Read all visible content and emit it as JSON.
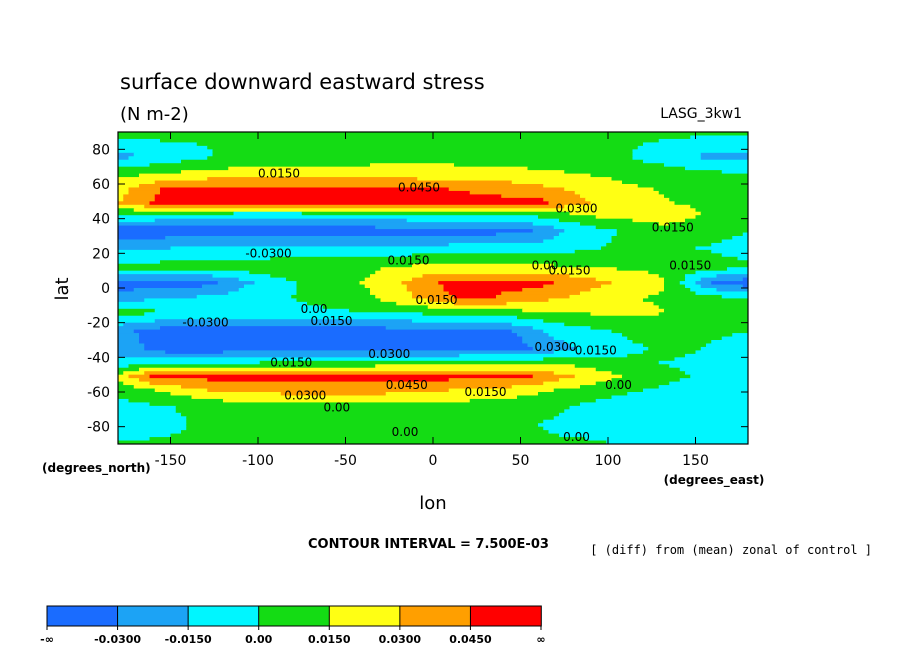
{
  "chart_data": {
    "type": "heatmap",
    "title": "surface downward eastward stress",
    "units": "(N m-2)",
    "model_label": "LASG_3kw1",
    "xlabel": "lon",
    "ylabel": "lat",
    "x_unit": "(degrees_east)",
    "y_unit": "(degrees_north)",
    "xlim": [
      -180,
      180
    ],
    "ylim": [
      -90,
      90
    ],
    "x_ticks": [
      -150,
      -100,
      -50,
      0,
      50,
      100,
      150
    ],
    "x_tick_labels": [
      "-150",
      "-100",
      "-50",
      "0",
      "50",
      "100",
      "150"
    ],
    "y_ticks": [
      -80,
      -60,
      -40,
      -20,
      0,
      20,
      40,
      60,
      80
    ],
    "y_tick_labels": [
      "-80",
      "-60",
      "-40",
      "-20",
      "0",
      "20",
      "40",
      "60",
      "80"
    ],
    "contour_interval_text": "CONTOUR INTERVAL = 7.500E-03",
    "note": "[ (diff) from (mean) zonal of control ]",
    "levels": [
      -0.03,
      -0.015,
      0.0,
      0.015,
      0.03,
      0.045
    ],
    "colorbar": {
      "colors": [
        "#1a6cff",
        "#1ca3f5",
        "#00f6ff",
        "#14dc14",
        "#ffff14",
        "#ff9f00",
        "#ff0000"
      ],
      "labels": [
        "-∞",
        "-0.0300",
        "-0.0150",
        "0.00",
        "0.0150",
        "0.0300",
        "0.0450",
        "∞"
      ]
    },
    "bands": [
      {
        "lat": 88,
        "values": [
          {
            "lon": -180,
            "v": 0.005
          },
          {
            "lon": -80,
            "v": 0.0
          },
          {
            "lon": 40,
            "v": 0.006
          },
          {
            "lon": 180,
            "v": 0.0
          }
        ]
      },
      {
        "lat": 76,
        "values": [
          {
            "lon": -180,
            "v": -0.02
          },
          {
            "lon": -110,
            "v": 0.005
          },
          {
            "lon": 10,
            "v": 0.01
          },
          {
            "lon": 100,
            "v": 0.005
          },
          {
            "lon": 160,
            "v": -0.02
          },
          {
            "lon": 180,
            "v": -0.02
          }
        ]
      },
      {
        "lat": 66,
        "values": [
          {
            "lon": -180,
            "v": 0.01
          },
          {
            "lon": -130,
            "v": 0.02
          },
          {
            "lon": -30,
            "v": 0.022
          },
          {
            "lon": 60,
            "v": 0.018
          },
          {
            "lon": 130,
            "v": 0.008
          },
          {
            "lon": 180,
            "v": 0.0
          }
        ]
      },
      {
        "lat": 57,
        "values": [
          {
            "lon": -180,
            "v": 0.025
          },
          {
            "lon": -150,
            "v": 0.05
          },
          {
            "lon": -20,
            "v": 0.05
          },
          {
            "lon": 40,
            "v": 0.04
          },
          {
            "lon": 70,
            "v": 0.032
          },
          {
            "lon": 110,
            "v": 0.018
          },
          {
            "lon": 180,
            "v": 0.005
          }
        ]
      },
      {
        "lat": 49,
        "values": [
          {
            "lon": -180,
            "v": 0.03
          },
          {
            "lon": -155,
            "v": 0.05
          },
          {
            "lon": 60,
            "v": 0.05
          },
          {
            "lon": 80,
            "v": 0.035
          },
          {
            "lon": 110,
            "v": 0.02
          },
          {
            "lon": 180,
            "v": 0.008
          }
        ]
      },
      {
        "lat": 42,
        "values": [
          {
            "lon": -180,
            "v": 0.0
          },
          {
            "lon": -100,
            "v": -0.01
          },
          {
            "lon": 50,
            "v": 0.0
          },
          {
            "lon": 100,
            "v": 0.02
          },
          {
            "lon": 140,
            "v": 0.02
          },
          {
            "lon": 180,
            "v": 0.005
          }
        ]
      },
      {
        "lat": 33,
        "values": [
          {
            "lon": -180,
            "v": -0.04
          },
          {
            "lon": -160,
            "v": -0.04
          },
          {
            "lon": 50,
            "v": -0.035
          },
          {
            "lon": 80,
            "v": -0.012
          },
          {
            "lon": 130,
            "v": 0.012
          },
          {
            "lon": 180,
            "v": 0.0
          }
        ]
      },
      {
        "lat": 23,
        "values": [
          {
            "lon": -180,
            "v": -0.018
          },
          {
            "lon": -100,
            "v": -0.01
          },
          {
            "lon": 0,
            "v": -0.01
          },
          {
            "lon": 60,
            "v": -0.008
          },
          {
            "lon": 120,
            "v": 0.005
          },
          {
            "lon": 180,
            "v": -0.005
          }
        ]
      },
      {
        "lat": 12,
        "values": [
          {
            "lon": -180,
            "v": 0.005
          },
          {
            "lon": -100,
            "v": 0.008
          },
          {
            "lon": -50,
            "v": 0.01
          },
          {
            "lon": 0,
            "v": 0.02
          },
          {
            "lon": 60,
            "v": 0.018
          },
          {
            "lon": 120,
            "v": 0.012
          },
          {
            "lon": 180,
            "v": 0.002
          }
        ]
      },
      {
        "lat": 3,
        "values": [
          {
            "lon": -180,
            "v": -0.04
          },
          {
            "lon": -130,
            "v": -0.035
          },
          {
            "lon": -90,
            "v": -0.005
          },
          {
            "lon": -30,
            "v": 0.02
          },
          {
            "lon": 10,
            "v": 0.05
          },
          {
            "lon": 60,
            "v": 0.05
          },
          {
            "lon": 90,
            "v": 0.035
          },
          {
            "lon": 130,
            "v": 0.018
          },
          {
            "lon": 160,
            "v": -0.03
          },
          {
            "lon": 180,
            "v": -0.04
          }
        ]
      },
      {
        "lat": -6,
        "values": [
          {
            "lon": -180,
            "v": -0.02
          },
          {
            "lon": -120,
            "v": -0.01
          },
          {
            "lon": -40,
            "v": 0.01
          },
          {
            "lon": 20,
            "v": 0.05
          },
          {
            "lon": 60,
            "v": 0.035
          },
          {
            "lon": 100,
            "v": 0.02
          },
          {
            "lon": 180,
            "v": 0.0
          }
        ]
      },
      {
        "lat": -14,
        "values": [
          {
            "lon": -180,
            "v": 0.005
          },
          {
            "lon": -100,
            "v": -0.005
          },
          {
            "lon": -30,
            "v": 0.0
          },
          {
            "lon": 40,
            "v": 0.01
          },
          {
            "lon": 110,
            "v": 0.02
          },
          {
            "lon": 180,
            "v": 0.005
          }
        ]
      },
      {
        "lat": -25,
        "values": [
          {
            "lon": -180,
            "v": -0.025
          },
          {
            "lon": -150,
            "v": -0.04
          },
          {
            "lon": 40,
            "v": -0.035
          },
          {
            "lon": 70,
            "v": -0.01
          },
          {
            "lon": 130,
            "v": 0.008
          },
          {
            "lon": 180,
            "v": 0.0
          }
        ]
      },
      {
        "lat": -35,
        "values": [
          {
            "lon": -180,
            "v": -0.02
          },
          {
            "lon": -150,
            "v": -0.04
          },
          {
            "lon": 50,
            "v": -0.035
          },
          {
            "lon": 90,
            "v": -0.01
          },
          {
            "lon": 140,
            "v": 0.005
          },
          {
            "lon": 180,
            "v": -0.01
          }
        ]
      },
      {
        "lat": -43,
        "values": [
          {
            "lon": -180,
            "v": -0.01
          },
          {
            "lon": -100,
            "v": 0.0
          },
          {
            "lon": 0,
            "v": 0.005
          },
          {
            "lon": 80,
            "v": 0.01
          },
          {
            "lon": 130,
            "v": 0.0
          },
          {
            "lon": 180,
            "v": -0.01
          }
        ]
      },
      {
        "lat": -51,
        "values": [
          {
            "lon": -180,
            "v": 0.02
          },
          {
            "lon": -160,
            "v": 0.05
          },
          {
            "lon": 50,
            "v": 0.05
          },
          {
            "lon": 80,
            "v": 0.03
          },
          {
            "lon": 120,
            "v": 0.008
          },
          {
            "lon": 180,
            "v": -0.01
          }
        ]
      },
      {
        "lat": -59,
        "values": [
          {
            "lon": -180,
            "v": 0.005
          },
          {
            "lon": -120,
            "v": 0.035
          },
          {
            "lon": -40,
            "v": 0.038
          },
          {
            "lon": 40,
            "v": 0.025
          },
          {
            "lon": 100,
            "v": 0.005
          },
          {
            "lon": 180,
            "v": -0.015
          }
        ]
      },
      {
        "lat": -68,
        "values": [
          {
            "lon": -180,
            "v": -0.005
          },
          {
            "lon": -100,
            "v": 0.008
          },
          {
            "lon": 0,
            "v": 0.01
          },
          {
            "lon": 60,
            "v": 0.005
          },
          {
            "lon": 120,
            "v": -0.01
          },
          {
            "lon": 180,
            "v": -0.015
          }
        ]
      },
      {
        "lat": -78,
        "values": [
          {
            "lon": -180,
            "v": -0.01
          },
          {
            "lon": -140,
            "v": 0.0
          },
          {
            "lon": -40,
            "v": 0.005
          },
          {
            "lon": 60,
            "v": 0.0
          },
          {
            "lon": 150,
            "v": -0.015
          },
          {
            "lon": 180,
            "v": -0.005
          }
        ]
      },
      {
        "lat": -88,
        "values": [
          {
            "lon": -180,
            "v": 0.0
          },
          {
            "lon": -50,
            "v": 0.005
          },
          {
            "lon": 100,
            "v": 0.0
          },
          {
            "lon": 180,
            "v": -0.005
          }
        ]
      }
    ],
    "contour_labels": [
      {
        "text": "0.0150",
        "lon": -88,
        "lat": 66
      },
      {
        "text": "0.0450",
        "lon": -8,
        "lat": 58
      },
      {
        "text": "0.0300",
        "lon": 82,
        "lat": 46
      },
      {
        "text": "0.0150",
        "lon": 137,
        "lat": 35
      },
      {
        "text": "0.0150",
        "lon": 147,
        "lat": 13
      },
      {
        "text": "-0.0300",
        "lon": -94,
        "lat": 20
      },
      {
        "text": "0.0150",
        "lon": -14,
        "lat": 16
      },
      {
        "text": "0.00",
        "lon": 64,
        "lat": 13
      },
      {
        "text": "0.0150",
        "lon": 78,
        "lat": 10
      },
      {
        "text": "0.00",
        "lon": -68,
        "lat": -12
      },
      {
        "text": "-0.0300",
        "lon": -130,
        "lat": -20
      },
      {
        "text": "0.0150",
        "lon": -58,
        "lat": -19
      },
      {
        "text": "0.0150",
        "lon": 2,
        "lat": -7
      },
      {
        "text": "0.0300",
        "lon": -25,
        "lat": -38
      },
      {
        "text": "0.0300",
        "lon": 70,
        "lat": -34
      },
      {
        "text": "0.0150",
        "lon": 93,
        "lat": -36
      },
      {
        "text": "0.0150",
        "lon": -81,
        "lat": -43
      },
      {
        "text": "0.00",
        "lon": 106,
        "lat": -56
      },
      {
        "text": "0.0450",
        "lon": -15,
        "lat": -56
      },
      {
        "text": "0.0150",
        "lon": 30,
        "lat": -60
      },
      {
        "text": "0.0300",
        "lon": -73,
        "lat": -62
      },
      {
        "text": "0.00",
        "lon": -55,
        "lat": -69
      },
      {
        "text": "0.00",
        "lon": -16,
        "lat": -83
      },
      {
        "text": "0.00",
        "lon": 82,
        "lat": -86
      }
    ]
  }
}
